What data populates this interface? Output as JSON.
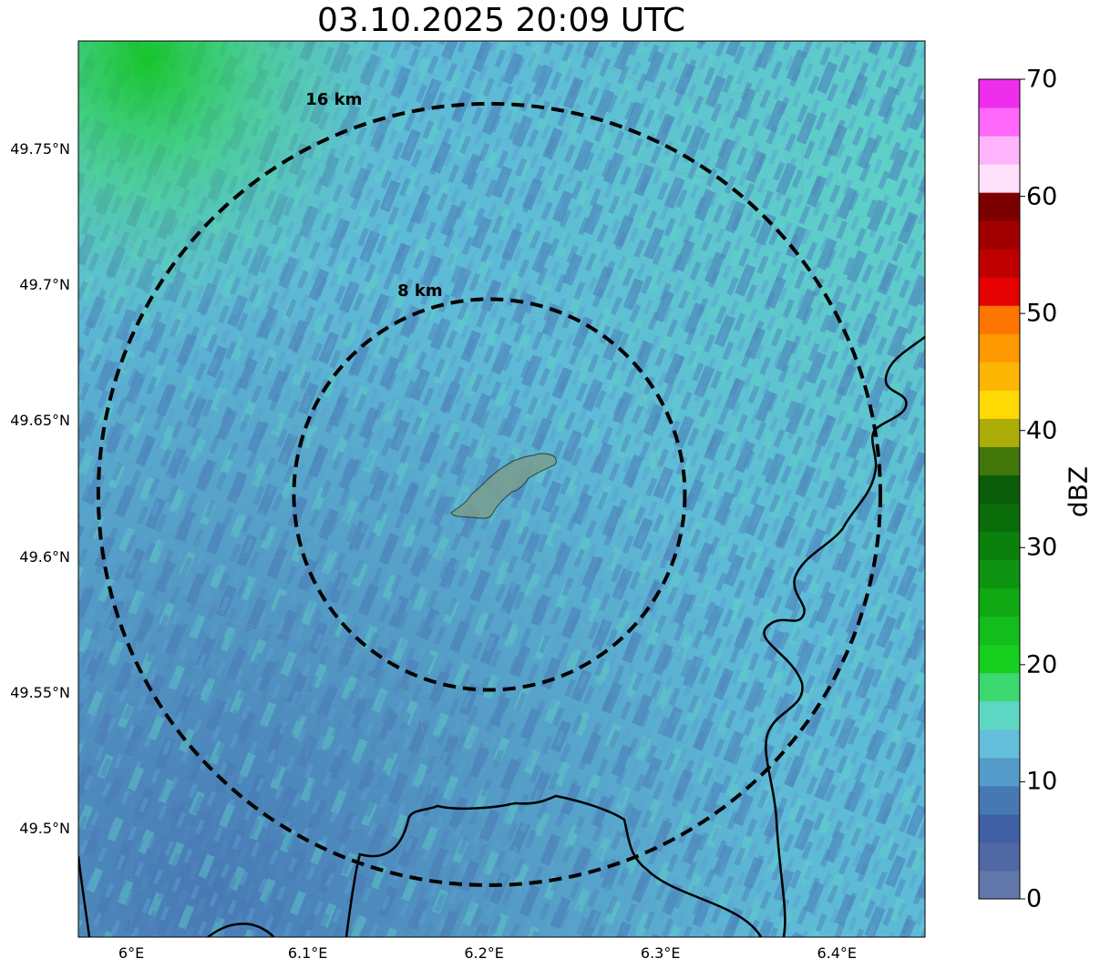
{
  "title": "03.10.2025 20:09 UTC",
  "map": {
    "lat_labels": [
      {
        "lat": 49.75,
        "text": "49.75°N"
      },
      {
        "lat": 49.7,
        "text": "49.7°N"
      },
      {
        "lat": 49.65,
        "text": "49.65°N"
      },
      {
        "lat": 49.6,
        "text": "49.6°N"
      },
      {
        "lat": 49.55,
        "text": "49.55°N"
      },
      {
        "lat": 49.5,
        "text": "49.5°N"
      }
    ],
    "lon_labels": [
      {
        "lon": 6.0,
        "text": "6°E"
      },
      {
        "lon": 6.1,
        "text": "6.1°E"
      },
      {
        "lon": 6.2,
        "text": "6.2°E"
      },
      {
        "lon": 6.3,
        "text": "6.3°E"
      },
      {
        "lon": 6.4,
        "text": "6.4°E"
      }
    ],
    "extent": {
      "lon_min": 5.97,
      "lon_max": 6.45,
      "lat_min": 49.46,
      "lat_max": 49.79
    },
    "center": {
      "lon": 6.203,
      "lat": 49.623
    },
    "range_rings": [
      {
        "label": "8 km",
        "radius_km": 8
      },
      {
        "label": "16 km",
        "radius_km": 16
      }
    ],
    "colors": {
      "background": "#5ebbd6",
      "ring": "#000000",
      "border": "#000000",
      "city": "#7a9e8f"
    }
  },
  "colorbar": {
    "label": "dBZ",
    "min": 0,
    "max": 70,
    "ticks": [
      "0",
      "10",
      "20",
      "30",
      "40",
      "50",
      "60",
      "70"
    ],
    "colors": [
      "#6277aa",
      "#5068a4",
      "#405fa5",
      "#4679b3",
      "#559bc9",
      "#63bfda",
      "#5ed6c4",
      "#3dd86f",
      "#17cf1f",
      "#13bd1c",
      "#10a914",
      "#0e9411",
      "#0c800d",
      "#0a6d0a",
      "#0b5c0a",
      "#427609",
      "#acad08",
      "#fed903",
      "#fdb603",
      "#fd9800",
      "#fd7400",
      "#e50101",
      "#bf0000",
      "#a20000",
      "#7c0000",
      "#ffe0fb",
      "#ffb3fb",
      "#ff68fb",
      "#ef2ded"
    ]
  }
}
